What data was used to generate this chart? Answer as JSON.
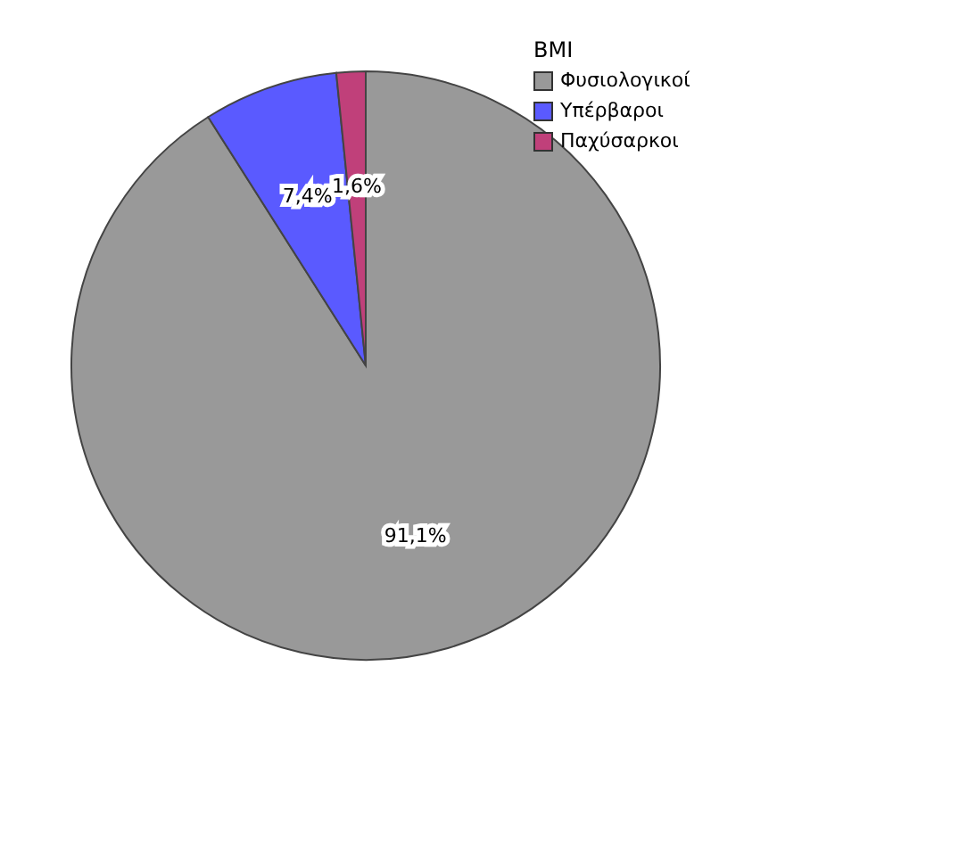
{
  "chart_data": {
    "type": "pie",
    "legend_title": "BMI",
    "categories": [
      "Φυσιολογικοί",
      "Υπέρβαροι",
      "Παχύσαρκοι"
    ],
    "values": [
      91.1,
      7.4,
      1.6
    ],
    "colors": [
      "#999999",
      "#5a5aff",
      "#c0407a"
    ],
    "value_labels": [
      "91,1%",
      "7,4%",
      "1,6%"
    ],
    "legend": "top right"
  }
}
